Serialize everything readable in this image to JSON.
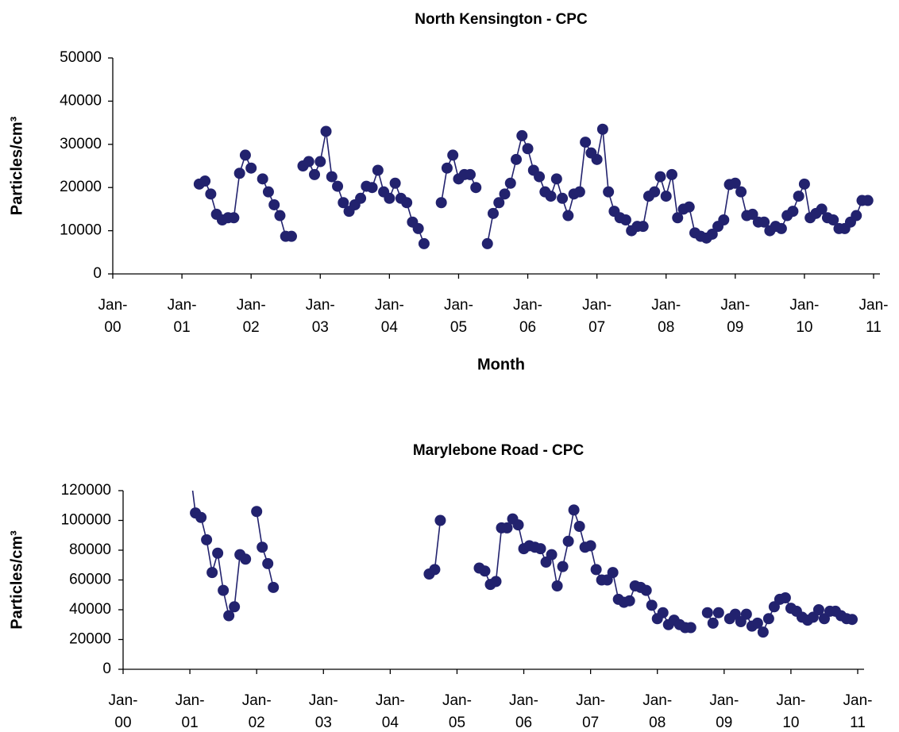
{
  "chart_data": [
    {
      "type": "line",
      "title": "North Kensington - CPC",
      "x_label": "Month",
      "y_label": "Particles/cm³",
      "x": [
        "2001-01",
        "2001-02",
        "2001-03",
        "2001-04",
        "2001-05",
        "2001-06",
        "2001-07",
        "2001-08",
        "2001-09",
        "2001-10",
        "2001-11",
        "2001-12",
        "2002-01",
        "2002-02",
        "2002-03",
        "2002-04",
        "2002-05",
        "2002-06",
        "2002-07",
        "2002-08",
        "2002-09",
        "2002-10",
        "2002-11",
        "2002-12",
        "2003-01",
        "2003-02",
        "2003-03",
        "2003-04",
        "2003-05",
        "2003-06",
        "2003-07",
        "2003-08",
        "2003-09",
        "2003-10",
        "2003-11",
        "2003-12",
        "2004-01",
        "2004-02",
        "2004-03",
        "2004-04",
        "2004-05",
        "2004-06",
        "2004-07",
        "2004-08",
        "2004-09",
        "2004-10",
        "2004-11",
        "2004-12",
        "2005-01",
        "2005-02",
        "2005-03",
        "2005-04",
        "2005-05",
        "2005-06",
        "2005-07",
        "2005-08",
        "2005-09",
        "2005-10",
        "2005-11",
        "2005-12",
        "2006-01",
        "2006-02",
        "2006-03",
        "2006-04",
        "2006-05",
        "2006-06",
        "2006-07",
        "2006-08",
        "2006-09",
        "2006-10",
        "2006-11",
        "2006-12",
        "2007-01",
        "2007-02",
        "2007-03",
        "2007-04",
        "2007-05",
        "2007-06",
        "2007-07",
        "2007-08",
        "2007-09",
        "2007-10",
        "2007-11",
        "2007-12",
        "2008-01",
        "2008-02",
        "2008-03",
        "2008-04",
        "2008-05",
        "2008-06",
        "2008-07",
        "2008-08",
        "2008-09",
        "2008-10",
        "2008-11",
        "2008-12",
        "2009-01",
        "2009-02",
        "2009-03",
        "2009-04",
        "2009-05",
        "2009-06",
        "2009-07",
        "2009-08",
        "2009-09",
        "2009-10",
        "2009-11",
        "2009-12",
        "2010-01",
        "2010-02",
        "2010-03",
        "2010-04",
        "2010-05",
        "2010-06",
        "2010-07",
        "2010-08",
        "2010-09",
        "2010-10",
        "2010-11",
        "2010-12"
      ],
      "series": [
        {
          "color": "#22226e",
          "values": [
            null,
            null,
            null,
            20800,
            21500,
            18500,
            13800,
            12500,
            13000,
            13000,
            23300,
            27500,
            24500,
            null,
            22000,
            19000,
            16000,
            13500,
            8700,
            8700,
            null,
            25000,
            26000,
            23000,
            26000,
            33000,
            22500,
            20300,
            16500,
            14500,
            16000,
            17500,
            20300,
            20000,
            24000,
            19000,
            17500,
            21000,
            17500,
            16500,
            12000,
            10500,
            7000,
            null,
            null,
            16500,
            24500,
            27500,
            22000,
            23000,
            23000,
            20000,
            null,
            7000,
            14000,
            16500,
            18500,
            21000,
            26500,
            32000,
            29000,
            24000,
            22500,
            19000,
            18000,
            22000,
            17500,
            13500,
            18500,
            19000,
            30500,
            28000,
            26500,
            33500,
            19000,
            14500,
            13000,
            12500,
            10000,
            11000,
            11000,
            18000,
            19000,
            22500,
            18000,
            23000,
            13000,
            15000,
            15500,
            9500,
            8700,
            8300,
            9200,
            11000,
            12500,
            20700,
            21000,
            19000,
            13500,
            13800,
            12000,
            12000,
            10000,
            11000,
            10500,
            13500,
            14500,
            18000,
            20800,
            13000,
            14000,
            15000,
            13000,
            12500,
            10500,
            10500,
            12000,
            13500,
            17000,
            17000
          ]
        }
      ],
      "xlim": [
        "2000-01",
        "2011-01"
      ],
      "xticks": [
        {
          "value": "2000-01",
          "label": "Jan-00"
        },
        {
          "value": "2001-01",
          "label": "Jan-01"
        },
        {
          "value": "2002-01",
          "label": "Jan-02"
        },
        {
          "value": "2003-01",
          "label": "Jan-03"
        },
        {
          "value": "2004-01",
          "label": "Jan-04"
        },
        {
          "value": "2005-01",
          "label": "Jan-05"
        },
        {
          "value": "2006-01",
          "label": "Jan-06"
        },
        {
          "value": "2007-01",
          "label": "Jan-07"
        },
        {
          "value": "2008-01",
          "label": "Jan-08"
        },
        {
          "value": "2009-01",
          "label": "Jan-09"
        },
        {
          "value": "2010-01",
          "label": "Jan-10"
        },
        {
          "value": "2011-01",
          "label": "Jan-11"
        }
      ],
      "ylim": [
        0,
        50000
      ],
      "yticks": [
        0,
        10000,
        20000,
        30000,
        40000,
        50000
      ],
      "grid": false
    },
    {
      "type": "line",
      "title": "Marylebone Road - CPC",
      "y_label": "Particles/cm³",
      "x": [
        "2001-01",
        "2001-02",
        "2001-03",
        "2001-04",
        "2001-05",
        "2001-06",
        "2001-07",
        "2001-08",
        "2001-09",
        "2001-10",
        "2001-11",
        "2001-12",
        "2002-01",
        "2002-02",
        "2002-03",
        "2002-04",
        "2002-05",
        "2002-06",
        "2002-07",
        "2002-08",
        "2002-09",
        "2002-10",
        "2002-11",
        "2002-12",
        "2003-01",
        "2003-02",
        "2003-03",
        "2003-04",
        "2003-05",
        "2003-06",
        "2003-07",
        "2003-08",
        "2003-09",
        "2003-10",
        "2003-11",
        "2003-12",
        "2004-01",
        "2004-02",
        "2004-03",
        "2004-04",
        "2004-05",
        "2004-06",
        "2004-07",
        "2004-08",
        "2004-09",
        "2004-10",
        "2004-11",
        "2004-12",
        "2005-01",
        "2005-02",
        "2005-03",
        "2005-04",
        "2005-05",
        "2005-06",
        "2005-07",
        "2005-08",
        "2005-09",
        "2005-10",
        "2005-11",
        "2005-12",
        "2006-01",
        "2006-02",
        "2006-03",
        "2006-04",
        "2006-05",
        "2006-06",
        "2006-07",
        "2006-08",
        "2006-09",
        "2006-10",
        "2006-11",
        "2006-12",
        "2007-01",
        "2007-02",
        "2007-03",
        "2007-04",
        "2007-05",
        "2007-06",
        "2007-07",
        "2007-08",
        "2007-09",
        "2007-10",
        "2007-11",
        "2007-12",
        "2008-01",
        "2008-02",
        "2008-03",
        "2008-04",
        "2008-05",
        "2008-06",
        "2008-07",
        "2008-08",
        "2008-09",
        "2008-10",
        "2008-11",
        "2008-12",
        "2009-01",
        "2009-02",
        "2009-03",
        "2009-04",
        "2009-05",
        "2009-06",
        "2009-07",
        "2009-08",
        "2009-09",
        "2009-10",
        "2009-11",
        "2009-12",
        "2010-01",
        "2010-02",
        "2010-03",
        "2010-04",
        "2010-05",
        "2010-06",
        "2010-07",
        "2010-08",
        "2010-09",
        "2010-10",
        "2010-11",
        "2010-12"
      ],
      "series": [
        {
          "color": "#22226e",
          "values": [
            135000,
            105000,
            102000,
            87000,
            65000,
            78000,
            53000,
            36000,
            42000,
            77000,
            74000,
            null,
            106000,
            82000,
            71000,
            55000,
            null,
            null,
            null,
            null,
            null,
            null,
            null,
            null,
            null,
            null,
            null,
            null,
            null,
            null,
            null,
            null,
            null,
            null,
            null,
            null,
            null,
            null,
            null,
            null,
            null,
            null,
            null,
            64000,
            67000,
            100000,
            null,
            null,
            null,
            null,
            null,
            null,
            68000,
            66000,
            57000,
            59000,
            95000,
            95000,
            101000,
            97000,
            81000,
            83000,
            82000,
            81000,
            72000,
            77000,
            56000,
            69000,
            86000,
            107000,
            96000,
            82000,
            83000,
            67000,
            60000,
            60000,
            65000,
            47000,
            45000,
            46000,
            56000,
            55000,
            53000,
            43000,
            34000,
            38000,
            30000,
            33000,
            30000,
            28000,
            28000,
            null,
            null,
            38000,
            31000,
            38000,
            null,
            34000,
            37000,
            32000,
            37000,
            29000,
            31000,
            25000,
            34000,
            42000,
            47000,
            48000,
            41000,
            39000,
            35000,
            33000,
            35000,
            40000,
            34000,
            39000,
            39000,
            36000,
            34000,
            33500
          ]
        }
      ],
      "xlim": [
        "2000-01",
        "2011-01"
      ],
      "xticks": [
        {
          "value": "2000-01",
          "label": "Jan-00"
        },
        {
          "value": "2001-01",
          "label": "Jan-01"
        },
        {
          "value": "2002-01",
          "label": "Jan-02"
        },
        {
          "value": "2003-01",
          "label": "Jan-03"
        },
        {
          "value": "2004-01",
          "label": "Jan-04"
        },
        {
          "value": "2005-01",
          "label": "Jan-05"
        },
        {
          "value": "2006-01",
          "label": "Jan-06"
        },
        {
          "value": "2007-01",
          "label": "Jan-07"
        },
        {
          "value": "2008-01",
          "label": "Jan-08"
        },
        {
          "value": "2009-01",
          "label": "Jan-09"
        },
        {
          "value": "2010-01",
          "label": "Jan-10"
        },
        {
          "value": "2011-01",
          "label": "Jan-11"
        }
      ],
      "ylim": [
        0,
        120000
      ],
      "yticks": [
        0,
        20000,
        40000,
        60000,
        80000,
        100000,
        120000
      ],
      "grid": false
    }
  ]
}
